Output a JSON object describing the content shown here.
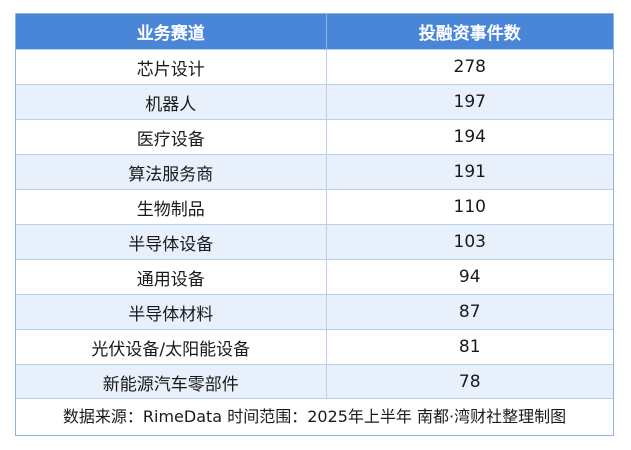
{
  "table": {
    "headers": [
      "业务赛道",
      "投融资事件数"
    ],
    "rows": [
      {
        "track": "芯片设计",
        "count": "278"
      },
      {
        "track": "机器人",
        "count": "197"
      },
      {
        "track": "医疗设备",
        "count": "194"
      },
      {
        "track": "算法服务商",
        "count": "191"
      },
      {
        "track": "生物制品",
        "count": "110"
      },
      {
        "track": "半导体设备",
        "count": "103"
      },
      {
        "track": "通用设备",
        "count": "94"
      },
      {
        "track": "半导体材料",
        "count": "87"
      },
      {
        "track": "光伏设备/太阳能设备",
        "count": "81"
      },
      {
        "track": "新能源汽车零部件",
        "count": "78"
      }
    ]
  },
  "footer": {
    "text": "数据来源：RimeData 时间范围：2025年上半年 南都·湾财社整理制图"
  },
  "colors": {
    "header_bg": "#4a86d8",
    "header_text": "#ffffff",
    "stripe_bg": "#e8f0fb",
    "border": "#8fb4e4"
  }
}
